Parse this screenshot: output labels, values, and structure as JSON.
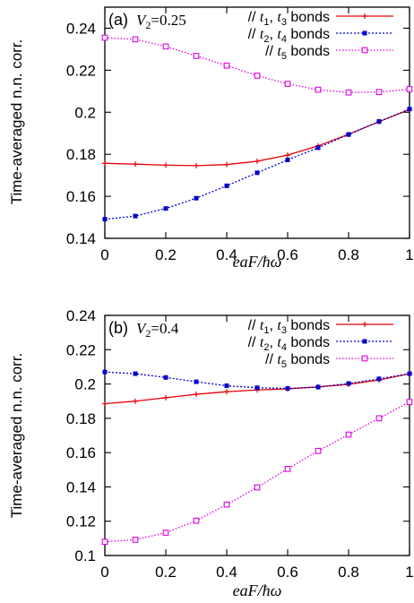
{
  "y_axis_label": "Time-averaged n.n. corr.",
  "chart_data": [
    {
      "type": "line",
      "panel_tag": "(a)",
      "panel_param": "V2=0.25",
      "xlabel": "eaF/ħω",
      "ylabel": "Time-averaged n.n. corr.",
      "xlim": [
        0,
        1
      ],
      "ylim": [
        0.14,
        0.25
      ],
      "x_ticks": [
        0,
        0.2,
        0.4,
        0.6,
        0.8,
        1
      ],
      "x_tick_labels": [
        "0",
        "0.2",
        "0.4",
        "0.6",
        "0.8",
        "1"
      ],
      "y_ticks": [
        0.14,
        0.16,
        0.18,
        0.2,
        0.22,
        0.24
      ],
      "y_tick_labels": [
        "0.14",
        "0.16",
        "0.18",
        "0.2",
        "0.22",
        "0.24"
      ],
      "legend_position": "top-right",
      "grid": false,
      "x": [
        0,
        0.1,
        0.2,
        0.3,
        0.4,
        0.5,
        0.6,
        0.7,
        0.8,
        0.9,
        1.0
      ],
      "series": [
        {
          "name": "// t1, t3 bonds",
          "legend": {
            "prefix": "// ",
            "a": "t",
            "a_sub": "1",
            "mid": ", ",
            "b": "t",
            "b_sub": "3",
            "suffix": " bonds"
          },
          "color": "#e8000b",
          "dash": "",
          "marker": "plus",
          "values": [
            0.1757,
            0.1753,
            0.1748,
            0.1746,
            0.1751,
            0.1767,
            0.1796,
            0.184,
            0.1895,
            0.1955,
            0.2013
          ]
        },
        {
          "name": "// t2, t4 bonds",
          "legend": {
            "prefix": "// ",
            "a": "t",
            "a_sub": "2",
            "mid": ", ",
            "b": "t",
            "b_sub": "4",
            "suffix": " bonds"
          },
          "color": "#0000cc",
          "dash": "2,2",
          "marker": "filledsquare",
          "values": [
            0.1491,
            0.1506,
            0.1542,
            0.1591,
            0.165,
            0.1712,
            0.1773,
            0.1831,
            0.1894,
            0.1956,
            0.2015
          ]
        },
        {
          "name": "// t5 bonds",
          "legend": {
            "prefix": "// ",
            "a": "t",
            "a_sub": "5",
            "mid": "",
            "b": "",
            "b_sub": "",
            "suffix": " bonds"
          },
          "color": "#e000e0",
          "dash": "1.5,2",
          "marker": "opensquare",
          "values": [
            0.2355,
            0.2347,
            0.2313,
            0.2268,
            0.2222,
            0.2174,
            0.2135,
            0.2107,
            0.2094,
            0.2096,
            0.211
          ]
        }
      ]
    },
    {
      "type": "line",
      "panel_tag": "(b)",
      "panel_param": "V2=0.4",
      "xlabel": "eaF/ħω",
      "ylabel": "Time-averaged n.n. corr.",
      "xlim": [
        0,
        1
      ],
      "ylim": [
        0.1,
        0.24
      ],
      "x_ticks": [
        0,
        0.2,
        0.4,
        0.6,
        0.8,
        1
      ],
      "x_tick_labels": [
        "0",
        "0.2",
        "0.4",
        "0.6",
        "0.8",
        "1"
      ],
      "y_ticks": [
        0.1,
        0.12,
        0.14,
        0.16,
        0.18,
        0.2,
        0.22,
        0.24
      ],
      "y_tick_labels": [
        "0.1",
        "0.12",
        "0.14",
        "0.16",
        "0.18",
        "0.2",
        "0.22",
        "0.24"
      ],
      "legend_position": "top-right",
      "grid": false,
      "x": [
        0,
        0.1,
        0.2,
        0.3,
        0.4,
        0.5,
        0.6,
        0.7,
        0.8,
        0.9,
        1.0
      ],
      "series": [
        {
          "name": "// t1, t3 bonds",
          "legend": {
            "prefix": "// ",
            "a": "t",
            "a_sub": "1",
            "mid": ", ",
            "b": "t",
            "b_sub": "3",
            "suffix": " bonds"
          },
          "color": "#e8000b",
          "dash": "",
          "marker": "plus",
          "values": [
            0.1885,
            0.19,
            0.192,
            0.194,
            0.1955,
            0.1965,
            0.1972,
            0.1983,
            0.1998,
            0.2023,
            0.206
          ]
        },
        {
          "name": "// t2, t4 bonds",
          "legend": {
            "prefix": "// ",
            "a": "t",
            "a_sub": "2",
            "mid": ", ",
            "b": "t",
            "b_sub": "4",
            "suffix": " bonds"
          },
          "color": "#0000cc",
          "dash": "2,2",
          "marker": "filledsquare",
          "values": [
            0.207,
            0.206,
            0.2038,
            0.2013,
            0.199,
            0.1978,
            0.1974,
            0.1982,
            0.2003,
            0.203,
            0.206
          ]
        },
        {
          "name": "// t5 bonds",
          "legend": {
            "prefix": "// ",
            "a": "t",
            "a_sub": "5",
            "mid": "",
            "b": "",
            "b_sub": "",
            "suffix": " bonds"
          },
          "color": "#e000e0",
          "dash": "1.5,2",
          "marker": "opensquare",
          "values": [
            0.108,
            0.1092,
            0.1133,
            0.1203,
            0.1297,
            0.1397,
            0.1505,
            0.161,
            0.1705,
            0.18,
            0.1895
          ]
        }
      ]
    }
  ]
}
